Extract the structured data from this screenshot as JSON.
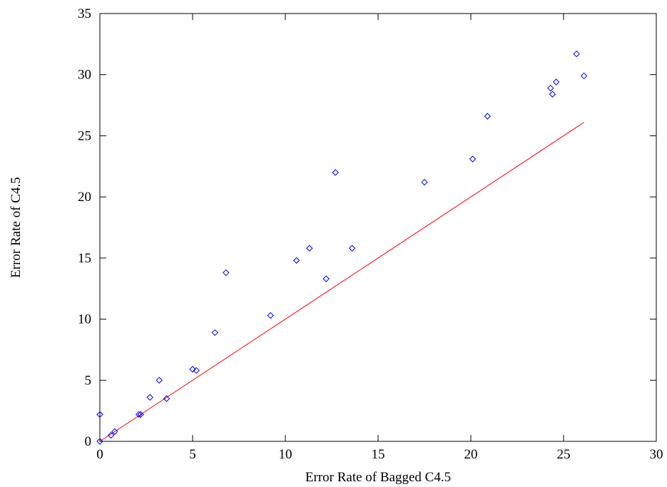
{
  "chart_data": {
    "type": "scatter",
    "title": "",
    "xlabel": "Error Rate of Bagged C4.5",
    "ylabel": "Error Rate of C4.5",
    "xlim": [
      0,
      30
    ],
    "ylim": [
      0,
      35
    ],
    "x_ticks": [
      0,
      5,
      10,
      15,
      20,
      25,
      30
    ],
    "y_ticks": [
      0,
      5,
      10,
      15,
      20,
      25,
      30,
      35
    ],
    "x_tick_labels": [
      "0",
      "5",
      "10",
      "15",
      "20",
      "25",
      "30"
    ],
    "y_tick_labels": [
      "0",
      "5",
      "10",
      "15",
      "20",
      "25",
      "30",
      "35"
    ],
    "grid": false,
    "legend": "none",
    "series": [
      {
        "marker": "diamond",
        "color": "#0000ff",
        "points": [
          [
            0.0,
            0.0
          ],
          [
            0.0,
            2.2
          ],
          [
            0.6,
            0.5
          ],
          [
            0.8,
            0.8
          ],
          [
            2.1,
            2.2
          ],
          [
            2.2,
            2.2
          ],
          [
            2.7,
            3.6
          ],
          [
            3.2,
            5.0
          ],
          [
            3.6,
            3.5
          ],
          [
            5.0,
            5.9
          ],
          [
            5.2,
            5.8
          ],
          [
            6.2,
            8.9
          ],
          [
            6.8,
            13.8
          ],
          [
            9.2,
            10.3
          ],
          [
            10.6,
            14.8
          ],
          [
            11.3,
            15.8
          ],
          [
            12.2,
            13.3
          ],
          [
            12.7,
            22.0
          ],
          [
            13.6,
            15.8
          ],
          [
            17.5,
            21.2
          ],
          [
            20.1,
            23.1
          ],
          [
            20.9,
            26.6
          ],
          [
            24.3,
            28.9
          ],
          [
            24.4,
            28.4
          ],
          [
            24.6,
            29.4
          ],
          [
            25.7,
            31.7
          ],
          [
            26.1,
            29.9
          ]
        ]
      }
    ],
    "reference_line": {
      "color": "#ff0000",
      "from": [
        0,
        0
      ],
      "to": [
        26.1,
        26.1
      ]
    }
  }
}
